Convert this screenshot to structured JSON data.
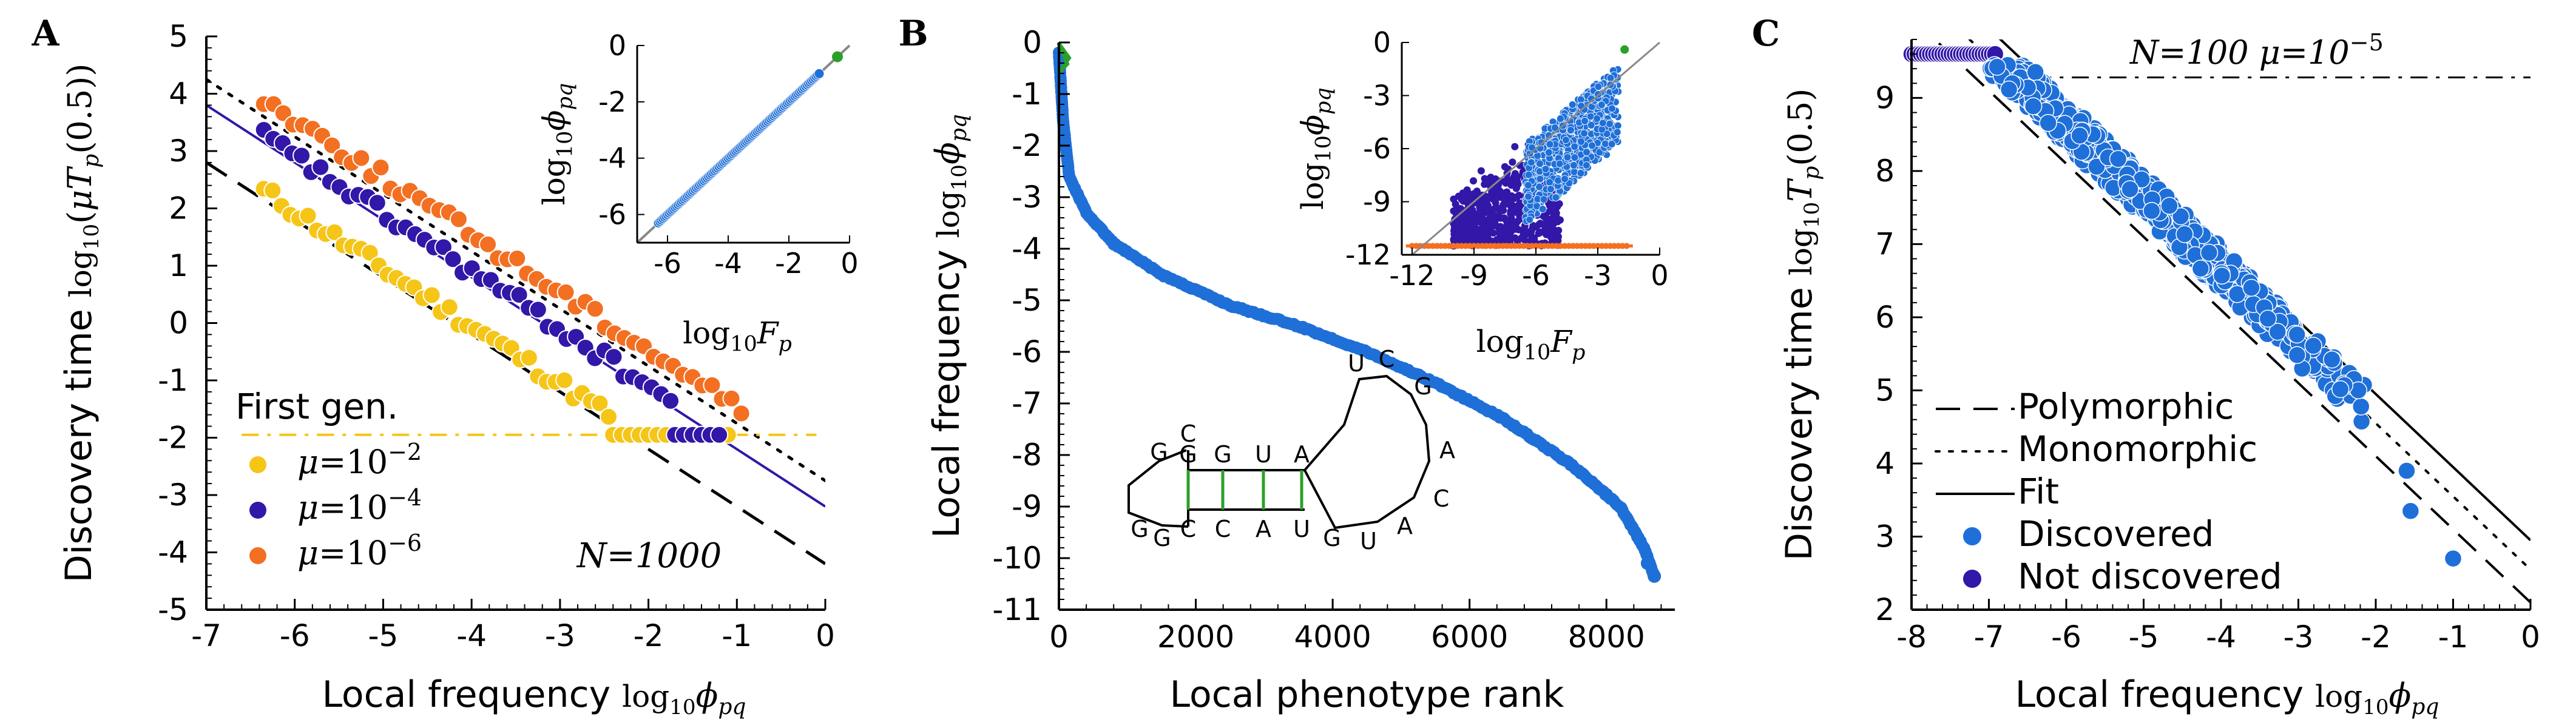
{
  "figure": {
    "panels": [
      "A",
      "B",
      "C"
    ]
  },
  "chart_data": [
    {
      "panel": "A",
      "type": "scatter",
      "xlabel": "Local frequency log₁₀ϕpq",
      "xlabel_text": "Local frequency",
      "xlabel_math": "log10ϕpq",
      "ylabel_text": "Discovery time",
      "ylabel_math": "log10(μTp(0.5))",
      "xlim": [
        -7,
        0
      ],
      "ylim": [
        -5,
        5
      ],
      "xticks": [
        -7,
        -6,
        -5,
        -4,
        -3,
        -2,
        -1,
        0
      ],
      "yticks": [
        -5,
        -4,
        -3,
        -2,
        -1,
        0,
        1,
        2,
        3,
        4,
        5
      ],
      "annotations": {
        "first_gen": "First gen.",
        "N": "N=1000"
      },
      "series": [
        {
          "name": "μ=10−2",
          "mu_exp": "−2",
          "color": "#f5c518",
          "slope": -1,
          "intercept": -4.05,
          "x_start": -6.35,
          "x_end": -2.45,
          "n": 40,
          "floor": -1.95,
          "floor_x": [
            -2.4,
            -1.05
          ]
        },
        {
          "name": "μ=10−4",
          "mu_exp": "−4",
          "color": "#3217a8",
          "slope": -1,
          "intercept": -3.1,
          "x_start": -6.35,
          "x_end": -1.75,
          "n": 44,
          "floor": -1.95,
          "floor_x": [
            -1.7,
            -1.2
          ]
        },
        {
          "name": "μ=10−6",
          "mu_exp": "−6",
          "color": "#f36f21",
          "slope": -1,
          "intercept": -2.45,
          "x_start": -6.35,
          "x_end": -0.95,
          "n": 50
        }
      ],
      "lines": [
        {
          "name": "polymorphic",
          "style": "dashed",
          "color": "#000",
          "slope": -1,
          "intercept": -4.2
        },
        {
          "name": "monomorphic",
          "style": "dotted",
          "color": "#000",
          "slope": -1,
          "intercept": -2.75
        },
        {
          "name": "fit",
          "style": "solid",
          "color": "#3217a8",
          "slope": -1,
          "intercept": -3.2
        },
        {
          "name": "first-gen",
          "style": "dashdot",
          "color": "#f5c518",
          "y": -1.95
        }
      ],
      "inset": {
        "xlabel_math": "log10Fp",
        "ylabel_math": "log10ϕpq",
        "xlim": [
          -7,
          0
        ],
        "ylim": [
          -7,
          0
        ],
        "xticks": [
          -6,
          -4,
          -2,
          0
        ],
        "yticks": [
          -6,
          -4,
          -2,
          0
        ],
        "points_range": [
          -6.3,
          -1.0
        ],
        "highlight": {
          "x": -0.4,
          "y": -0.4,
          "color": "#2aa02a"
        }
      }
    },
    {
      "panel": "B",
      "type": "scatter",
      "xlabel": "Local phenotype rank",
      "ylabel_text": "Local frequency",
      "ylabel_math": "log10ϕpq",
      "xlim": [
        0,
        9000
      ],
      "ylim": [
        -11,
        0
      ],
      "xticks": [
        0,
        2000,
        4000,
        6000,
        8000
      ],
      "yticks": [
        0,
        -1,
        -2,
        -3,
        -4,
        -5,
        -6,
        -7,
        -8,
        -9,
        -10,
        -11
      ],
      "curve_points": [
        [
          0,
          -0.2
        ],
        [
          60,
          -1.5
        ],
        [
          150,
          -2.6
        ],
        [
          400,
          -3.3
        ],
        [
          800,
          -3.9
        ],
        [
          1500,
          -4.5
        ],
        [
          2500,
          -5.1
        ],
        [
          3500,
          -5.5
        ],
        [
          4500,
          -6.0
        ],
        [
          5500,
          -6.6
        ],
        [
          6500,
          -7.3
        ],
        [
          7500,
          -8.2
        ],
        [
          8200,
          -9.0
        ],
        [
          8550,
          -9.8
        ],
        [
          8700,
          -10.35
        ]
      ],
      "highlight": {
        "color": "#2aa02a",
        "x": 80,
        "y": -0.3
      },
      "rna_letters": {
        "left_top": [
          "G",
          "C"
        ],
        "left_bottom": [
          "G",
          "G"
        ],
        "stem_top": [
          "G",
          "G",
          "U",
          "A"
        ],
        "stem_bottom": [
          "C",
          "C",
          "A",
          "U"
        ],
        "loop": [
          "U",
          "C",
          "G",
          "A",
          "C",
          "A",
          "U",
          "G"
        ]
      },
      "inset": {
        "xlabel_math": "log10Fp",
        "ylabel_math": "log10ϕpq",
        "xlim": [
          -12.5,
          0
        ],
        "ylim": [
          -12,
          0
        ],
        "xticks": [
          -12,
          -9,
          -6,
          -3,
          0
        ],
        "yticks": [
          0,
          -3,
          -6,
          -9,
          -12
        ]
      }
    },
    {
      "panel": "C",
      "type": "scatter",
      "xlabel_text": "Local frequency",
      "xlabel_math": "log10ϕpq",
      "ylabel_text": "Discovery time",
      "ylabel_math": "log10Tp(0.5)",
      "xlim": [
        -8,
        0
      ],
      "ylim": [
        2,
        9.8
      ],
      "xticks": [
        -8,
        -7,
        -6,
        -5,
        -4,
        -3,
        -2,
        -1,
        0
      ],
      "yticks": [
        2,
        3,
        4,
        5,
        6,
        7,
        8,
        9
      ],
      "annotation": "N=100 μ=10−5",
      "annotation_parts": {
        "N": "N=100",
        "mu": "μ=10−5"
      },
      "legend": [
        {
          "label": "Polymorphic",
          "style": "dashed"
        },
        {
          "label": "Monomorphic",
          "style": "dotted"
        },
        {
          "label": "Fit",
          "style": "solid"
        },
        {
          "label": "Discovered",
          "marker": "#1f6fd8"
        },
        {
          "label": "Not discovered",
          "marker": "#3217a8"
        }
      ],
      "lines": [
        {
          "name": "polymorphic",
          "style": "dashed",
          "slope": -1,
          "intercept": 2.1
        },
        {
          "name": "monomorphic",
          "style": "dotted",
          "slope": -1,
          "intercept": 2.55
        },
        {
          "name": "fit",
          "style": "solid",
          "slope": -1,
          "intercept": 2.95
        },
        {
          "name": "plateau",
          "style": "dashdot",
          "y": 9.28
        }
      ],
      "discovered_range": [
        -7.1,
        -2.1
      ],
      "not_discovered_range": [
        -8.0,
        -6.9
      ],
      "outliers": [
        [
          -1.6,
          3.9
        ],
        [
          -1.55,
          3.35
        ],
        [
          -1.0,
          2.7
        ]
      ],
      "colors": {
        "discovered": "#1f6fd8",
        "not_discovered": "#3217a8"
      }
    }
  ]
}
